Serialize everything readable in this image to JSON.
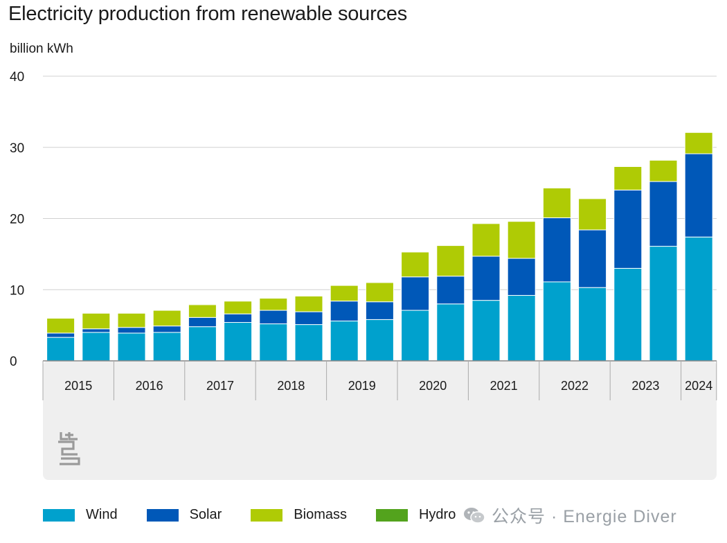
{
  "chart_data": {
    "type": "bar",
    "stacked": true,
    "title": "Electricity production from renewable sources",
    "ylabel": "billion kWh",
    "ylim": [
      0,
      40
    ],
    "yticks": [
      0,
      10,
      20,
      30,
      40
    ],
    "grid": true,
    "legend_position": "bottom",
    "year_groups": [
      {
        "label": "2015",
        "bars": 2
      },
      {
        "label": "2016",
        "bars": 2
      },
      {
        "label": "2017",
        "bars": 2
      },
      {
        "label": "2018",
        "bars": 2
      },
      {
        "label": "2019",
        "bars": 2
      },
      {
        "label": "2020",
        "bars": 2
      },
      {
        "label": "2021",
        "bars": 2
      },
      {
        "label": "2022",
        "bars": 2
      },
      {
        "label": "2023",
        "bars": 2
      },
      {
        "label": "2024",
        "bars": 1
      }
    ],
    "series": [
      {
        "name": "Wind",
        "color": "#00a1cd",
        "values": [
          3.3,
          4.0,
          3.9,
          4.0,
          4.8,
          5.4,
          5.2,
          5.1,
          5.6,
          5.8,
          7.1,
          8.0,
          8.5,
          9.2,
          11.1,
          10.3,
          13.0,
          16.1,
          17.4
        ]
      },
      {
        "name": "Solar",
        "color": "#0058b8",
        "values": [
          0.6,
          0.5,
          0.8,
          0.9,
          1.3,
          1.2,
          1.9,
          1.8,
          2.8,
          2.5,
          4.7,
          3.9,
          6.2,
          5.2,
          9.0,
          8.1,
          11.0,
          9.1,
          11.7
        ]
      },
      {
        "name": "Biomass",
        "color": "#afcb05",
        "values": [
          2.1,
          2.2,
          2.0,
          2.2,
          1.8,
          1.8,
          1.7,
          2.2,
          2.2,
          2.7,
          3.5,
          4.3,
          4.6,
          5.2,
          4.2,
          4.4,
          3.3,
          3.0,
          3.0
        ]
      },
      {
        "name": "Hydro",
        "color": "#53a31d",
        "values": [
          0.1,
          0.1,
          0.1,
          0.1,
          0.1,
          0.1,
          0.1,
          0.1,
          0.1,
          0.1,
          0.1,
          0.1,
          0.1,
          0.1,
          0.1,
          0.1,
          0.1,
          0.1,
          0.1
        ]
      }
    ]
  },
  "watermark": {
    "text": "公众号 · Energie Diver",
    "icon": "wechat-icon"
  },
  "logo": {
    "icon": "cbs-logo-icon"
  }
}
